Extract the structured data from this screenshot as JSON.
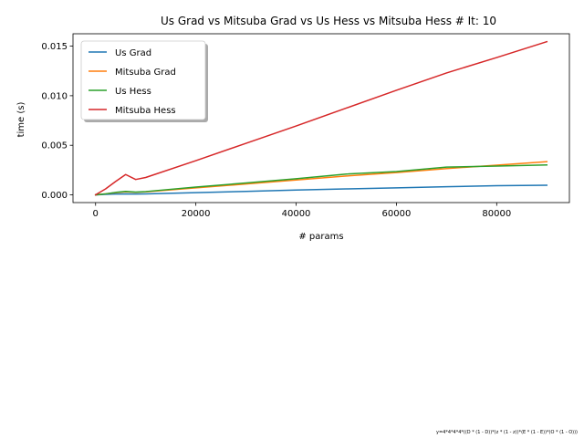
{
  "chart_data": {
    "type": "line",
    "title": "Us Grad vs Mitsuba Grad vs Us Hess vs Mitsuba Hess # It: 10",
    "xlabel": "# params",
    "ylabel": "time (s)",
    "xlim": [
      -4500,
      94500
    ],
    "ylim": [
      -0.00078,
      0.01625
    ],
    "xticks": [
      0,
      20000,
      40000,
      60000,
      80000
    ],
    "xtick_labels": [
      "0",
      "20000",
      "40000",
      "60000",
      "80000"
    ],
    "yticks": [
      0.0,
      0.005,
      0.01,
      0.015
    ],
    "ytick_labels": [
      "0.000",
      "0.005",
      "0.010",
      "0.015"
    ],
    "grid": false,
    "legend_position": "top-left",
    "footnote": "y=4*4*4*4*((D * (1 - D))*(z * (1 - z))*(E * (1 - E))*(O * (1 - O)))",
    "series": [
      {
        "name": "Us Grad",
        "color": "#1f77b4",
        "x": [
          0,
          2000,
          4000,
          6000,
          8000,
          10000,
          20000,
          30000,
          40000,
          50000,
          60000,
          70000,
          80000,
          90000
        ],
        "y": [
          0.0,
          5e-05,
          8e-05,
          0.0001,
          8e-05,
          0.0001,
          0.00022,
          0.00035,
          0.00048,
          0.0006,
          0.0007,
          0.00082,
          0.00092,
          0.00097
        ]
      },
      {
        "name": "Mitsuba Grad",
        "color": "#ff7f0e",
        "x": [
          0,
          2000,
          4000,
          6000,
          8000,
          10000,
          20000,
          30000,
          40000,
          50000,
          60000,
          70000,
          80000,
          90000
        ],
        "y": [
          0.0,
          0.0001,
          0.00022,
          0.0003,
          0.00025,
          0.0003,
          0.0007,
          0.0011,
          0.0015,
          0.0019,
          0.00225,
          0.00265,
          0.003,
          0.00335
        ]
      },
      {
        "name": "Us Hess",
        "color": "#2ca02c",
        "x": [
          0,
          2000,
          4000,
          6000,
          8000,
          10000,
          20000,
          30000,
          40000,
          50000,
          60000,
          70000,
          80000,
          90000
        ],
        "y": [
          0.0,
          0.0001,
          0.00025,
          0.00035,
          0.00028,
          0.00033,
          0.00078,
          0.0012,
          0.00162,
          0.0021,
          0.00235,
          0.0028,
          0.0029,
          0.00302
        ]
      },
      {
        "name": "Mitsuba Hess",
        "color": "#d62728",
        "x": [
          0,
          2000,
          4000,
          6000,
          8000,
          10000,
          20000,
          30000,
          40000,
          50000,
          60000,
          70000,
          80000,
          90000
        ],
        "y": [
          0.0,
          0.0006,
          0.00135,
          0.00205,
          0.00155,
          0.00175,
          0.00345,
          0.0052,
          0.00695,
          0.00875,
          0.01055,
          0.0123,
          0.01385,
          0.01545
        ]
      }
    ]
  }
}
